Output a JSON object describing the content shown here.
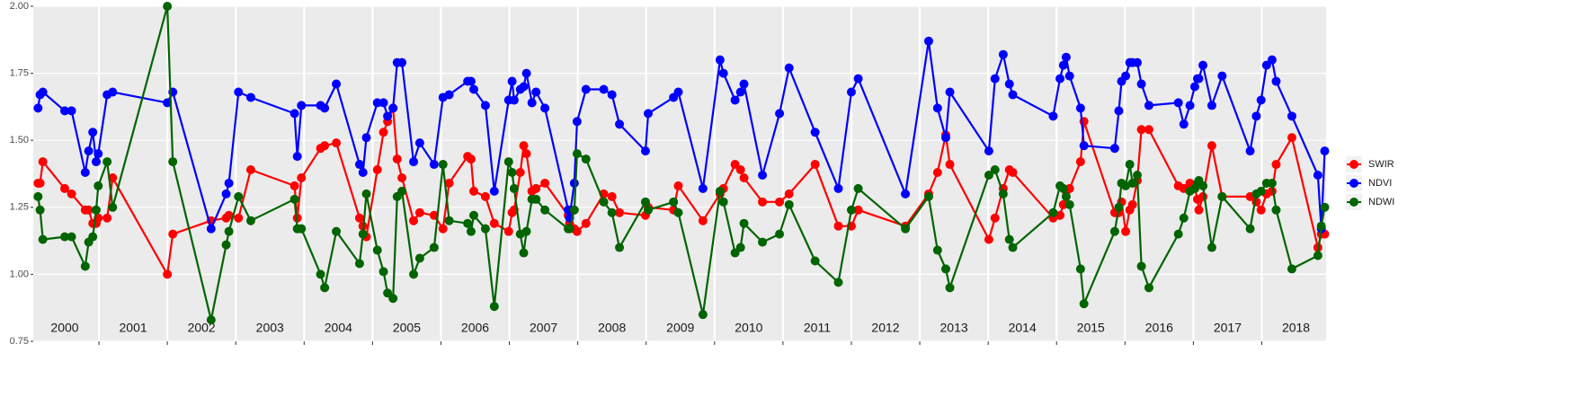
{
  "chart_data": {
    "type": "line",
    "x": [
      2000.11,
      2000.14,
      2000.18,
      2000.5,
      2000.6,
      2000.8,
      2000.85,
      2000.91,
      2000.96,
      2000.99,
      2001.12,
      2001.2,
      2002.0,
      2002.08,
      2002.64,
      2002.86,
      2002.9,
      2003.04,
      2003.22,
      2003.86,
      2003.9,
      2003.96,
      2004.24,
      2004.3,
      2004.47,
      2004.81,
      2004.86,
      2004.91,
      2005.07,
      2005.16,
      2005.22,
      2005.3,
      2005.36,
      2005.43,
      2005.6,
      2005.69,
      2005.9,
      2006.03,
      2006.12,
      2006.39,
      2006.44,
      2006.48,
      2006.65,
      2006.78,
      2006.99,
      2007.04,
      2007.07,
      2007.16,
      2007.21,
      2007.25,
      2007.33,
      2007.39,
      2007.52,
      2007.86,
      2007.88,
      2007.95,
      2007.99,
      2008.12,
      2008.38,
      2008.5,
      2008.61,
      2008.99,
      2009.03,
      2009.4,
      2009.47,
      2009.83,
      2010.08,
      2010.13,
      2010.3,
      2010.38,
      2010.43,
      2010.7,
      2010.95,
      2011.09,
      2011.47,
      2011.81,
      2012.0,
      2012.1,
      2012.79,
      2013.13,
      2013.26,
      2013.38,
      2013.44,
      2014.01,
      2014.1,
      2014.22,
      2014.31,
      2014.36,
      2014.95,
      2015.05,
      2015.1,
      2015.14,
      2015.19,
      2015.35,
      2015.4,
      2015.85,
      2015.91,
      2015.95,
      2016.01,
      2016.07,
      2016.11,
      2016.18,
      2016.24,
      2016.35,
      2016.78,
      2016.86,
      2016.95,
      2017.02,
      2017.06,
      2017.08,
      2017.14,
      2017.27,
      2017.42,
      2017.83,
      2017.92,
      2017.99,
      2018.07,
      2018.15,
      2018.21,
      2018.44,
      2018.82,
      2018.87,
      2018.92
    ],
    "series": [
      {
        "name": "SWIR",
        "color": "#ff0000",
        "values": [
          1.34,
          1.34,
          1.42,
          1.32,
          1.3,
          1.24,
          1.24,
          1.19,
          1.19,
          1.21,
          1.21,
          1.36,
          1.0,
          1.15,
          1.2,
          1.21,
          1.22,
          1.21,
          1.39,
          1.33,
          1.21,
          1.36,
          1.47,
          1.48,
          1.49,
          1.21,
          1.18,
          1.14,
          1.39,
          1.53,
          1.57,
          1.62,
          1.43,
          1.36,
          1.2,
          1.23,
          1.22,
          1.17,
          1.34,
          1.44,
          1.43,
          1.31,
          1.29,
          1.19,
          1.16,
          1.23,
          1.24,
          1.38,
          1.48,
          1.45,
          1.31,
          1.32,
          1.34,
          1.22,
          1.19,
          1.17,
          1.16,
          1.19,
          1.3,
          1.29,
          1.23,
          1.22,
          1.25,
          1.24,
          1.33,
          1.2,
          1.3,
          1.32,
          1.41,
          1.39,
          1.36,
          1.27,
          1.27,
          1.3,
          1.41,
          1.18,
          1.18,
          1.24,
          1.18,
          1.3,
          1.38,
          1.52,
          1.41,
          1.13,
          1.21,
          1.32,
          1.39,
          1.38,
          1.21,
          1.22,
          1.26,
          1.31,
          1.32,
          1.42,
          1.57,
          1.23,
          1.23,
          1.27,
          1.16,
          1.24,
          1.26,
          1.35,
          1.54,
          1.54,
          1.33,
          1.32,
          1.34,
          1.32,
          1.28,
          1.24,
          1.29,
          1.48,
          1.29,
          1.29,
          1.27,
          1.24,
          1.3,
          1.31,
          1.41,
          1.51,
          1.1,
          1.15,
          1.15
        ]
      },
      {
        "name": "NDVI",
        "color": "#0000ff",
        "values": [
          1.62,
          1.67,
          1.68,
          1.61,
          1.61,
          1.38,
          1.46,
          1.53,
          1.42,
          1.45,
          1.67,
          1.68,
          1.64,
          1.68,
          1.17,
          1.3,
          1.34,
          1.68,
          1.66,
          1.6,
          1.44,
          1.63,
          1.63,
          1.62,
          1.71,
          1.41,
          1.38,
          1.51,
          1.64,
          1.64,
          1.59,
          1.62,
          1.79,
          1.79,
          1.42,
          1.49,
          1.41,
          1.66,
          1.67,
          1.72,
          1.72,
          1.69,
          1.63,
          1.31,
          1.65,
          1.72,
          1.65,
          1.69,
          1.7,
          1.75,
          1.64,
          1.68,
          1.62,
          1.24,
          1.21,
          1.34,
          1.57,
          1.69,
          1.69,
          1.67,
          1.56,
          1.46,
          1.6,
          1.66,
          1.68,
          1.32,
          1.8,
          1.75,
          1.65,
          1.68,
          1.71,
          1.37,
          1.6,
          1.77,
          1.53,
          1.32,
          1.68,
          1.73,
          1.3,
          1.87,
          1.62,
          1.51,
          1.68,
          1.46,
          1.73,
          1.82,
          1.71,
          1.67,
          1.59,
          1.73,
          1.78,
          1.81,
          1.74,
          1.62,
          1.48,
          1.47,
          1.61,
          1.72,
          1.74,
          1.79,
          1.79,
          1.79,
          1.71,
          1.63,
          1.64,
          1.56,
          1.63,
          1.7,
          1.73,
          1.73,
          1.78,
          1.63,
          1.74,
          1.46,
          1.59,
          1.65,
          1.78,
          1.8,
          1.72,
          1.59,
          1.37,
          1.17,
          1.46
        ]
      },
      {
        "name": "NDWI",
        "color": "#006400",
        "values": [
          1.29,
          1.24,
          1.13,
          1.14,
          1.14,
          1.03,
          1.12,
          1.14,
          1.24,
          1.33,
          1.42,
          1.25,
          2.0,
          1.42,
          0.83,
          1.11,
          1.16,
          1.29,
          1.2,
          1.28,
          1.17,
          1.17,
          1.0,
          0.95,
          1.16,
          1.04,
          1.15,
          1.3,
          1.09,
          1.01,
          0.93,
          0.91,
          1.29,
          1.31,
          1.0,
          1.06,
          1.1,
          1.41,
          1.2,
          1.19,
          1.16,
          1.22,
          1.17,
          0.88,
          1.42,
          1.38,
          1.32,
          1.15,
          1.08,
          1.16,
          1.28,
          1.28,
          1.24,
          1.17,
          1.17,
          1.24,
          1.45,
          1.43,
          1.27,
          1.23,
          1.1,
          1.27,
          1.24,
          1.27,
          1.23,
          0.85,
          1.31,
          1.27,
          1.08,
          1.1,
          1.19,
          1.12,
          1.15,
          1.26,
          1.05,
          0.97,
          1.24,
          1.32,
          1.17,
          1.29,
          1.09,
          1.02,
          0.95,
          1.37,
          1.39,
          1.3,
          1.13,
          1.1,
          1.23,
          1.33,
          1.32,
          1.29,
          1.26,
          1.02,
          0.89,
          1.16,
          1.25,
          1.34,
          1.33,
          1.41,
          1.34,
          1.37,
          1.03,
          0.95,
          1.15,
          1.21,
          1.31,
          1.32,
          1.34,
          1.35,
          1.33,
          1.1,
          1.29,
          1.17,
          1.3,
          1.31,
          1.34,
          1.34,
          1.24,
          1.02,
          1.07,
          1.18,
          1.25
        ]
      }
    ],
    "xlim": [
      2000.04,
      2018.94
    ],
    "xticks": [
      2001,
      2002,
      2003,
      2004,
      2005,
      2006,
      2007,
      2008,
      2009,
      2010,
      2011,
      2012,
      2013,
      2014,
      2015,
      2016,
      2017,
      2018
    ],
    "ylim": [
      0.75,
      2.0
    ],
    "yticks": [
      0.75,
      {
        "value": 1.0,
        "label": "1.00"
      },
      1.25,
      {
        "value": 1.5,
        "label": "1.50"
      },
      1.75,
      {
        "value": 2.0,
        "label": "2.00"
      }
    ],
    "year_labels": [
      2000,
      2001,
      2002,
      2003,
      2004,
      2005,
      2006,
      2007,
      2008,
      2009,
      2010,
      2011,
      2012,
      2013,
      2014,
      2015,
      2016,
      2017,
      2018
    ],
    "grid": true,
    "legend": "right"
  }
}
